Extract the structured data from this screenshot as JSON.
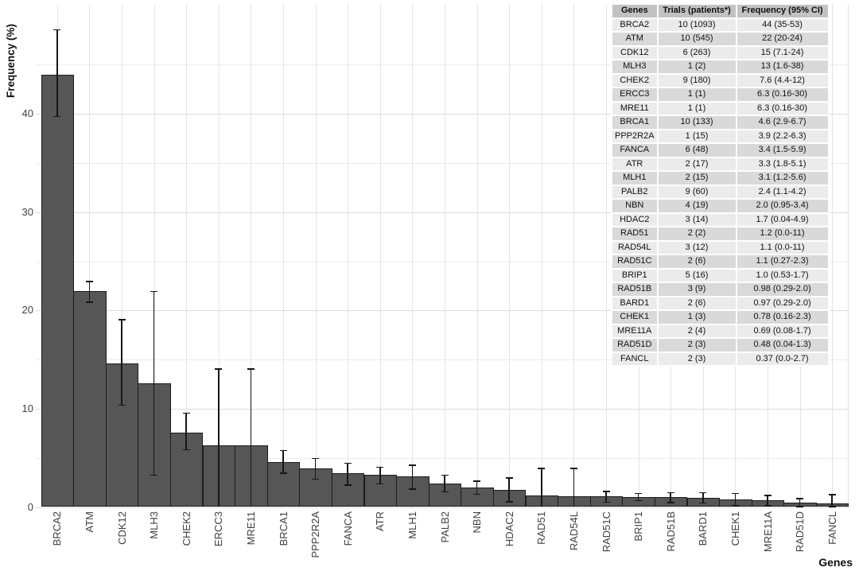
{
  "chart_data": {
    "type": "bar",
    "title": "",
    "xlabel": "Genes",
    "ylabel": "Frequency (%)",
    "ylim": [
      0,
      51
    ],
    "y_ticks": [
      0,
      10,
      20,
      30,
      40
    ],
    "y_minor_gridlines": [
      5,
      15,
      25,
      35,
      45
    ],
    "grid": true,
    "legend": "none",
    "categories": [
      "BRCA2",
      "ATM",
      "CDK12",
      "MLH3",
      "CHEK2",
      "ERCC3",
      "MRE11",
      "BRCA1",
      "PPP2R2A",
      "FANCA",
      "ATR",
      "MLH1",
      "PALB2",
      "NBN",
      "HDAC2",
      "RAD51",
      "RAD54L",
      "RAD51C",
      "BRIP1",
      "RAD51B",
      "BARD1",
      "CHEK1",
      "MRE11A",
      "RAD51D",
      "FANCL"
    ],
    "values": [
      44,
      22,
      14.6,
      12.6,
      7.6,
      6.3,
      6.3,
      4.6,
      3.9,
      3.4,
      3.3,
      3.1,
      2.4,
      2.0,
      1.7,
      1.2,
      1.1,
      1.1,
      1.0,
      0.98,
      0.97,
      0.78,
      0.69,
      0.48,
      0.37
    ],
    "error_bars": {
      "low": [
        39.8,
        20.9,
        10.4,
        3.3,
        5.9,
        0,
        0,
        3.5,
        2.9,
        2.3,
        2.4,
        1.9,
        1.6,
        1.35,
        0.6,
        0,
        0,
        0.55,
        0.7,
        0.5,
        0.45,
        0.2,
        0.2,
        0.1,
        0.1
      ],
      "high": [
        48.6,
        23.0,
        19.1,
        22.0,
        9.6,
        14.1,
        14.1,
        5.8,
        5.0,
        4.5,
        4.1,
        4.3,
        3.3,
        2.7,
        3.0,
        4.0,
        4.0,
        1.65,
        1.45,
        1.5,
        1.5,
        1.45,
        1.25,
        0.9,
        1.3
      ]
    },
    "colors": {
      "bar_fill": "#565656",
      "bar_border": "#1c1c1c",
      "error_bar": "#161616",
      "grid_major": "#dcdcdc",
      "grid_minor": "#ececec",
      "grid_vertical": "#e4e4e4"
    }
  },
  "table": {
    "headers": [
      "Genes",
      "Trials (patients*)",
      "Frequency (95% CI)"
    ],
    "rows": [
      [
        "BRCA2",
        "10 (1093)",
        "44 (35-53)"
      ],
      [
        "ATM",
        "10 (545)",
        "22 (20-24)"
      ],
      [
        "CDK12",
        "6 (263)",
        "15 (7.1-24)"
      ],
      [
        "MLH3",
        "1 (2)",
        "13 (1.6-38)"
      ],
      [
        "CHEK2",
        "9 (180)",
        "7.6 (4.4-12)"
      ],
      [
        "ERCC3",
        "1 (1)",
        "6.3 (0.16-30)"
      ],
      [
        "MRE11",
        "1 (1)",
        "6.3 (0.16-30)"
      ],
      [
        "BRCA1",
        "10 (133)",
        "4.6 (2.9-6.7)"
      ],
      [
        "PPP2R2A",
        "1 (15)",
        "3.9 (2.2-6.3)"
      ],
      [
        "FANCA",
        "6 (48)",
        "3.4 (1.5-5.9)"
      ],
      [
        "ATR",
        "2 (17)",
        "3.3 (1.8-5.1)"
      ],
      [
        "MLH1",
        "2 (15)",
        "3.1 (1.2-5.6)"
      ],
      [
        "PALB2",
        "9 (60)",
        "2.4 (1.1-4.2)"
      ],
      [
        "NBN",
        "4 (19)",
        "2.0 (0.95-3.4)"
      ],
      [
        "HDAC2",
        "3 (14)",
        "1.7 (0.04-4.9)"
      ],
      [
        "RAD51",
        "2 (2)",
        "1.2 (0.0-11)"
      ],
      [
        "RAD54L",
        "3 (12)",
        "1.1 (0.0-11)"
      ],
      [
        "RAD51C",
        "2 (6)",
        "1.1 (0.27-2.3)"
      ],
      [
        "BRIP1",
        "5 (16)",
        "1.0 (0.53-1.7)"
      ],
      [
        "RAD51B",
        "3 (9)",
        "0.98 (0.29-2.0)"
      ],
      [
        "BARD1",
        "2 (6)",
        "0.97 (0.29-2.0)"
      ],
      [
        "CHEK1",
        "1 (3)",
        "0.78 (0.16-2.3)"
      ],
      [
        "MRE11A",
        "2 (4)",
        "0.69 (0.08-1.7)"
      ],
      [
        "RAD51D",
        "2 (3)",
        "0.48 (0.04-1.3)"
      ],
      [
        "FANCL",
        "2 (3)",
        "0.37 (0.0-2.7)"
      ]
    ],
    "colors": {
      "header_bg": "#c2c2c2",
      "row_odd_bg": "#ebebeb",
      "row_even_bg": "#d9d9d9"
    }
  }
}
